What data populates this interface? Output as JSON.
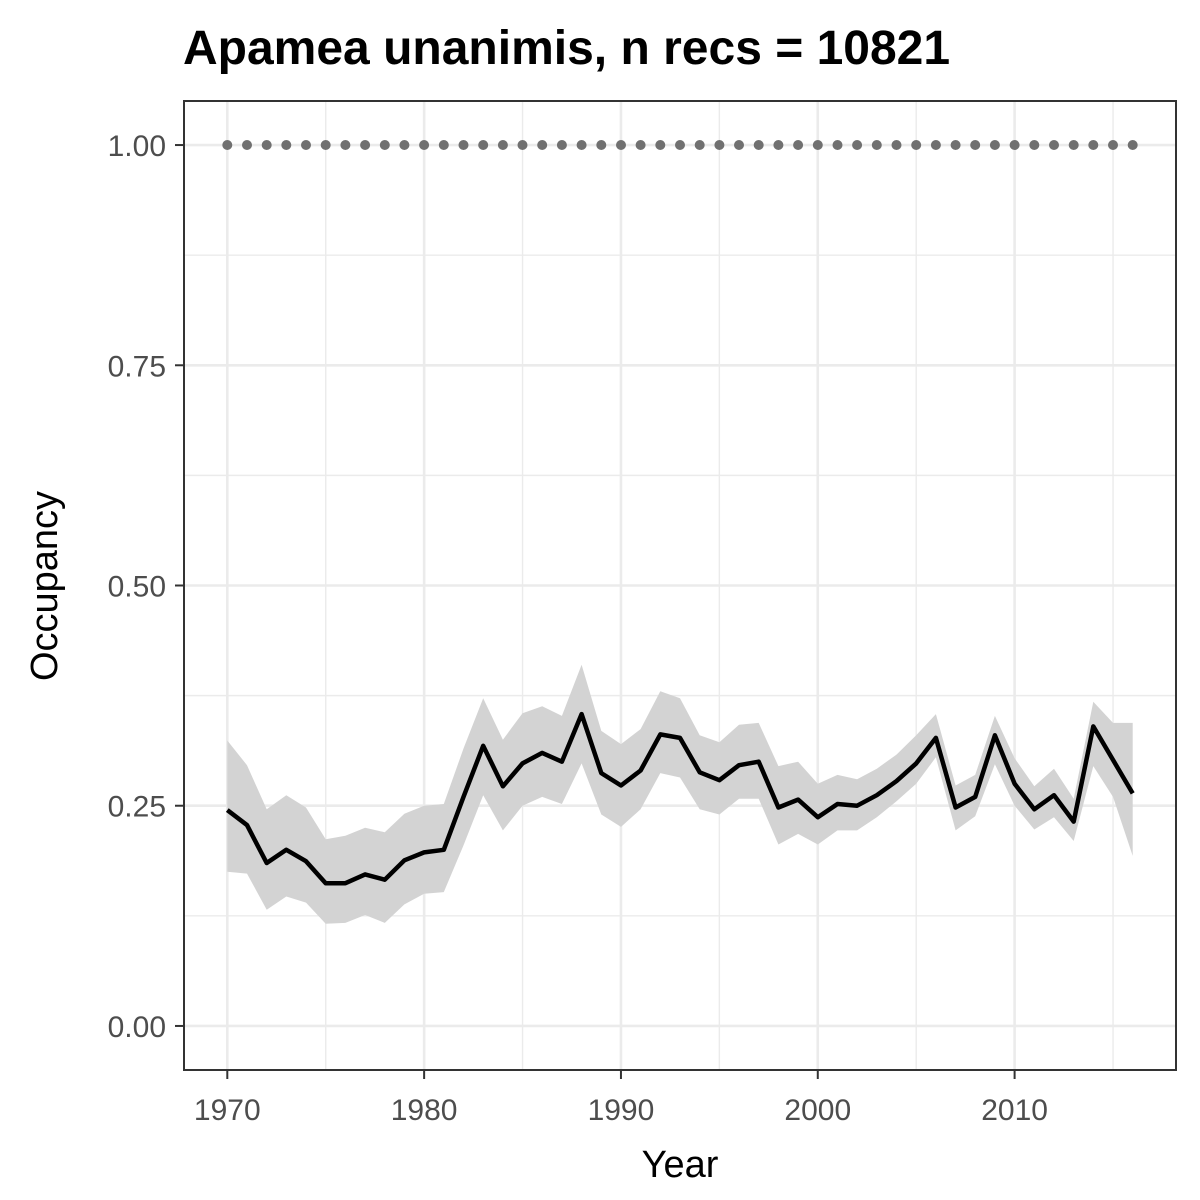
{
  "chart_data": {
    "type": "line",
    "title": "Apamea unanimis, n recs = 10821",
    "xlabel": "Year",
    "ylabel": "Occupancy",
    "xlim": [
      1967.8,
      2018.2
    ],
    "ylim": [
      -0.05,
      1.05
    ],
    "x_ticks": [
      1970,
      1980,
      1990,
      2000,
      2010
    ],
    "x_tick_labels": [
      "1970",
      "1980",
      "1990",
      "2000",
      "2010"
    ],
    "y_ticks": [
      0,
      0.25,
      0.5,
      0.75,
      1
    ],
    "y_tick_labels": [
      "0.00",
      "0.25",
      "0.50",
      "0.75",
      "1.00"
    ],
    "grid": true,
    "legend": "none",
    "x": [
      1970,
      1971,
      1972,
      1973,
      1974,
      1975,
      1976,
      1977,
      1978,
      1979,
      1980,
      1981,
      1982,
      1983,
      1984,
      1985,
      1986,
      1987,
      1988,
      1989,
      1990,
      1991,
      1992,
      1993,
      1994,
      1995,
      1996,
      1997,
      1998,
      1999,
      2000,
      2001,
      2002,
      2003,
      2004,
      2005,
      2006,
      2007,
      2008,
      2009,
      2010,
      2011,
      2012,
      2013,
      2014,
      2015,
      2016
    ],
    "series": [
      {
        "role": "mean",
        "color": "#000000",
        "values": [
          0.245,
          0.228,
          0.185,
          0.2,
          0.187,
          0.162,
          0.162,
          0.172,
          0.166,
          0.188,
          0.197,
          0.2,
          0.26,
          0.318,
          0.272,
          0.298,
          0.31,
          0.3,
          0.354,
          0.287,
          0.273,
          0.29,
          0.331,
          0.327,
          0.288,
          0.279,
          0.296,
          0.3,
          0.248,
          0.257,
          0.237,
          0.252,
          0.25,
          0.262,
          0.278,
          0.298,
          0.327,
          0.248,
          0.26,
          0.33,
          0.275,
          0.246,
          0.262,
          0.232,
          0.34,
          0.302,
          0.264
        ]
      },
      {
        "role": "ci_lower",
        "color": "#d3d3d3",
        "values": [
          0.175,
          0.173,
          0.132,
          0.147,
          0.14,
          0.116,
          0.117,
          0.126,
          0.117,
          0.138,
          0.15,
          0.152,
          0.205,
          0.262,
          0.222,
          0.25,
          0.26,
          0.252,
          0.298,
          0.24,
          0.226,
          0.246,
          0.287,
          0.282,
          0.246,
          0.24,
          0.258,
          0.258,
          0.206,
          0.218,
          0.206,
          0.222,
          0.222,
          0.237,
          0.255,
          0.275,
          0.305,
          0.222,
          0.238,
          0.297,
          0.25,
          0.223,
          0.237,
          0.21,
          0.295,
          0.26,
          0.193
        ]
      },
      {
        "role": "ci_upper",
        "color": "#d3d3d3",
        "values": [
          0.324,
          0.296,
          0.246,
          0.262,
          0.248,
          0.212,
          0.216,
          0.225,
          0.22,
          0.241,
          0.25,
          0.252,
          0.315,
          0.372,
          0.325,
          0.355,
          0.363,
          0.352,
          0.41,
          0.335,
          0.32,
          0.337,
          0.38,
          0.372,
          0.33,
          0.322,
          0.342,
          0.344,
          0.295,
          0.3,
          0.275,
          0.285,
          0.28,
          0.292,
          0.308,
          0.33,
          0.354,
          0.273,
          0.285,
          0.352,
          0.304,
          0.272,
          0.292,
          0.258,
          0.368,
          0.344,
          0.344
        ]
      },
      {
        "role": "reference",
        "style": "dotted",
        "color": "#707070",
        "values": [
          1,
          1,
          1,
          1,
          1,
          1,
          1,
          1,
          1,
          1,
          1,
          1,
          1,
          1,
          1,
          1,
          1,
          1,
          1,
          1,
          1,
          1,
          1,
          1,
          1,
          1,
          1,
          1,
          1,
          1,
          1,
          1,
          1,
          1,
          1,
          1,
          1,
          1,
          1,
          1,
          1,
          1,
          1,
          1,
          1,
          1,
          1
        ]
      }
    ]
  }
}
